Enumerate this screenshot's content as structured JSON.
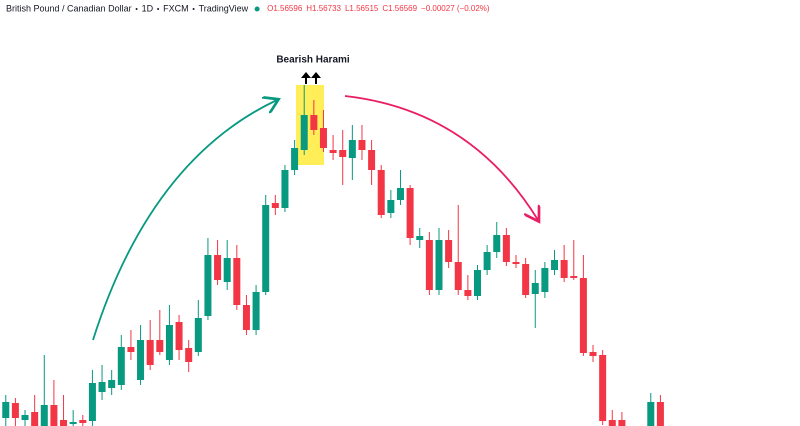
{
  "chart_data": {
    "type": "candlestick",
    "header": [
      "British Pound / Canadian Dollar",
      "1D",
      "FXCM",
      "TradingView"
    ],
    "ohlc_header": [
      "O1.56596",
      "H1.56733",
      "L1.56515",
      "C1.56569",
      "−0.00027 (−0.02%)"
    ],
    "annotation": "Bearish Harami",
    "up_color": "#089981",
    "down_color": "#f23645",
    "xlim": [
      -0.6,
      82.5
    ],
    "ylim": [
      0,
      426
    ],
    "x": [
      0,
      1,
      2,
      3,
      4,
      5,
      6,
      7,
      8,
      9,
      10,
      11,
      12,
      13,
      14,
      15,
      16,
      17,
      18,
      19,
      20,
      21,
      22,
      23,
      24,
      25,
      26,
      27,
      28,
      29,
      30,
      31,
      32,
      33,
      34,
      35,
      36,
      37,
      38,
      39,
      40,
      41,
      42,
      43,
      44,
      45,
      46,
      47,
      48,
      49,
      50,
      51,
      52,
      53,
      54,
      55,
      56,
      57,
      58,
      59,
      60,
      61,
      62,
      63,
      64,
      67,
      68
    ],
    "open": [
      8,
      23,
      6,
      14,
      0,
      21,
      6,
      2,
      6,
      5,
      34,
      38,
      41,
      79,
      46,
      86,
      86,
      66,
      104,
      78,
      74,
      110,
      171,
      144,
      168,
      121,
      96,
      134,
      223,
      218,
      256,
      276,
      311,
      298,
      276,
      276,
      268,
      286,
      276,
      256,
      213,
      226,
      238,
      186,
      186,
      136,
      186,
      164,
      136,
      130,
      156,
      174,
      191,
      164,
      162,
      132,
      134,
      156,
      166,
      150,
      148,
      74,
      71,
      6,
      6,
      0,
      24
    ],
    "high": [
      31,
      28,
      16,
      31,
      71,
      46,
      31,
      16,
      11,
      56,
      61,
      56,
      91,
      96,
      101,
      106,
      116,
      121,
      111,
      86,
      126,
      188,
      186,
      186,
      181,
      131,
      141,
      231,
      231,
      261,
      286,
      341,
      326,
      316,
      291,
      296,
      301,
      301,
      286,
      261,
      236,
      256,
      241,
      198,
      194,
      198,
      196,
      221,
      151,
      161,
      181,
      204,
      198,
      171,
      168,
      156,
      164,
      176,
      181,
      186,
      171,
      81,
      76,
      16,
      14,
      33,
      31
    ],
    "low": [
      0,
      0,
      0,
      0,
      0,
      0,
      0,
      0,
      0,
      0,
      26,
      31,
      36,
      66,
      41,
      56,
      71,
      61,
      66,
      54,
      70,
      106,
      141,
      136,
      116,
      91,
      91,
      131,
      211,
      214,
      251,
      271,
      291,
      274,
      266,
      241,
      246,
      266,
      241,
      208,
      208,
      221,
      181,
      178,
      131,
      131,
      158,
      131,
      126,
      126,
      151,
      168,
      160,
      158,
      128,
      98,
      128,
      151,
      144,
      146,
      70,
      64,
      1,
      0,
      0,
      0,
      0
    ],
    "close": [
      24,
      8,
      11,
      0,
      21,
      0,
      0,
      4,
      3,
      43,
      44,
      46,
      79,
      74,
      86,
      61,
      74,
      101,
      76,
      64,
      108,
      171,
      146,
      168,
      121,
      96,
      134,
      221,
      218,
      256,
      278,
      311,
      296,
      278,
      273,
      269,
      286,
      276,
      256,
      211,
      226,
      238,
      188,
      190,
      136,
      186,
      164,
      136,
      130,
      156,
      174,
      191,
      164,
      162,
      131,
      143,
      158,
      166,
      148,
      148,
      73,
      70,
      5,
      0,
      0,
      24,
      0
    ]
  }
}
